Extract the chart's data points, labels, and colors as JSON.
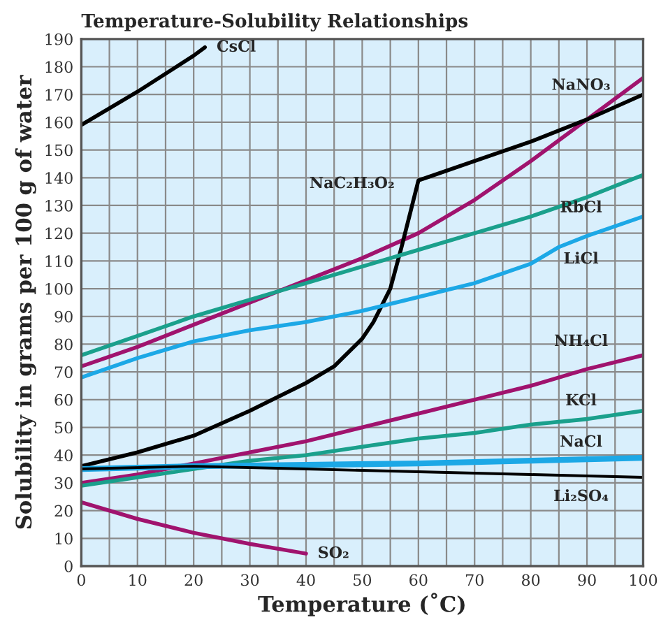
{
  "chart_data": {
    "type": "line",
    "title": "Temperature-Solubility Relationships",
    "xlabel": "Temperature (˚C)",
    "ylabel": "Solubility in grams per 100 g of water",
    "xlim": [
      0,
      100
    ],
    "ylim": [
      0,
      190
    ],
    "xticks": [
      0,
      {
        "value": 5,
        "label": null
      },
      10,
      {
        "value": 15,
        "label": null
      },
      20,
      {
        "value": 25,
        "label": null
      },
      30,
      {
        "value": 35,
        "label": null
      },
      40,
      {
        "value": 45,
        "label": null
      },
      50,
      {
        "value": 55,
        "label": null
      },
      60,
      {
        "value": 65,
        "label": null
      },
      70,
      {
        "value": 75,
        "label": null
      },
      80,
      {
        "value": 85,
        "label": null
      },
      90,
      {
        "value": 95,
        "label": null
      },
      100
    ],
    "yticks": [
      0,
      10,
      20,
      30,
      40,
      50,
      60,
      70,
      80,
      90,
      100,
      110,
      120,
      130,
      140,
      150,
      160,
      170,
      180,
      190
    ],
    "grid": true,
    "marker": "none",
    "line_style": "solid",
    "series": [
      {
        "name": "CsCl",
        "color": "#000000",
        "x": [
          0,
          10,
          20,
          22
        ],
        "values": [
          159,
          171,
          184,
          187
        ]
      },
      {
        "name": "NaNO₃",
        "color": "#a0136e",
        "x": [
          0,
          10,
          20,
          30,
          40,
          50,
          60,
          70,
          80,
          90,
          100
        ],
        "values": [
          72,
          79,
          87,
          95,
          103,
          111,
          120,
          132,
          146,
          161,
          176
        ]
      },
      {
        "name": "NaC₂H₃O₂",
        "color": "#000000",
        "x": [
          0,
          10,
          20,
          30,
          40,
          45,
          50,
          52,
          55,
          57,
          59,
          60,
          70,
          80,
          90,
          100
        ],
        "values": [
          36,
          41,
          47,
          56,
          66,
          72,
          82,
          88,
          100,
          115,
          131,
          139,
          146,
          153,
          161,
          170
        ]
      },
      {
        "name": "RbCl",
        "color": "#1aa08c",
        "x": [
          0,
          10,
          20,
          30,
          40,
          50,
          60,
          70,
          80,
          90,
          100
        ],
        "values": [
          76,
          83,
          90,
          96,
          102,
          108,
          114,
          120,
          126,
          133,
          141
        ]
      },
      {
        "name": "LiCl",
        "color": "#1ca8e6",
        "x": [
          0,
          10,
          20,
          30,
          40,
          50,
          60,
          70,
          80,
          85,
          90,
          100
        ],
        "values": [
          68,
          75,
          81,
          85,
          88,
          92,
          97,
          102,
          109,
          115,
          119,
          126
        ]
      },
      {
        "name": "NH₄Cl",
        "color": "#a0136e",
        "x": [
          0,
          10,
          20,
          30,
          40,
          50,
          60,
          70,
          80,
          90,
          100
        ],
        "values": [
          30,
          33,
          37,
          41,
          45,
          50,
          55,
          60,
          65,
          71,
          76
        ]
      },
      {
        "name": "KCl",
        "color": "#1aa08c",
        "x": [
          0,
          10,
          20,
          30,
          40,
          50,
          60,
          70,
          80,
          90,
          100
        ],
        "values": [
          29,
          32,
          35,
          38,
          40,
          43,
          46,
          48,
          51,
          53,
          56
        ]
      },
      {
        "name": "NaCl",
        "color": "#1ca8e6",
        "x": [
          0,
          20,
          40,
          60,
          80,
          100
        ],
        "values": [
          35,
          36,
          36.5,
          37,
          38,
          39
        ]
      },
      {
        "name": "Li₂SO₄",
        "color": "#000000",
        "x": [
          0,
          20,
          40,
          60,
          80,
          100
        ],
        "values": [
          35,
          36,
          35,
          34,
          33,
          32
        ]
      },
      {
        "name": "SO₂",
        "color": "#a0136e",
        "x": [
          0,
          10,
          20,
          30,
          40
        ],
        "values": [
          23,
          17,
          12,
          8,
          4.5
        ]
      }
    ]
  }
}
